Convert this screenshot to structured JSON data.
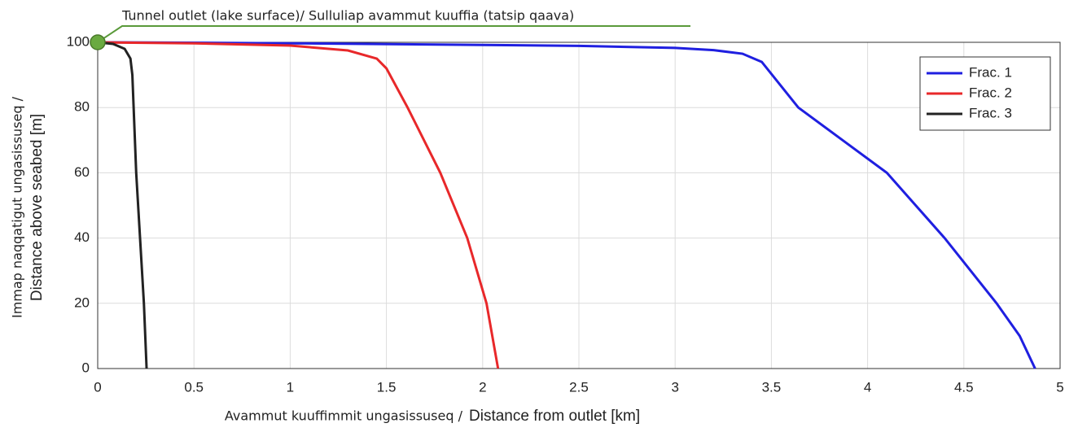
{
  "chart_data": {
    "type": "line",
    "annotation": {
      "text": "Tunnel outlet (lake surface)/ Sulluliap avammut kuuffia (tatsip qaava)",
      "x": 0,
      "y": 100,
      "color": "#5a9a3a"
    },
    "xlabel": [
      "Avammut kuuffimmit ungasissuseq /",
      "Distance from outlet [km]"
    ],
    "ylabel": [
      "Immap naqqatigut ungasissuseq /",
      "Distance above seabed [m]"
    ],
    "xlim": [
      0,
      5
    ],
    "xticks": [
      0,
      0.5,
      1,
      1.5,
      2,
      2.5,
      3,
      3.5,
      4,
      4.5,
      5
    ],
    "ylim": [
      0,
      100
    ],
    "yticks": [
      0,
      20,
      40,
      60,
      80,
      100
    ],
    "grid": true,
    "legend": "upper right",
    "series": [
      {
        "name": "Frac. 1",
        "color": "#1f1fe0",
        "x": [
          0,
          1,
          2,
          2.5,
          3,
          3.2,
          3.35,
          3.45,
          3.64,
          3.87,
          4.1,
          4.4,
          4.67,
          4.79,
          4.87
        ],
        "values": [
          100,
          99.7,
          99.2,
          98.9,
          98.3,
          97.6,
          96.5,
          94,
          80,
          70,
          60,
          40,
          20,
          10,
          0
        ]
      },
      {
        "name": "Frac. 2",
        "color": "#e8282a",
        "x": [
          0,
          0.5,
          1,
          1.3,
          1.45,
          1.5,
          1.61,
          1.78,
          1.92,
          2.02,
          2.08
        ],
        "values": [
          100,
          99.7,
          99,
          97.5,
          95,
          92,
          80,
          60,
          40,
          20,
          0
        ]
      },
      {
        "name": "Frac. 3",
        "color": "#222222",
        "x": [
          0,
          0.08,
          0.14,
          0.17,
          0.18,
          0.2,
          0.22,
          0.24,
          0.254
        ],
        "values": [
          100,
          99.5,
          98,
          95,
          90,
          60,
          40,
          20,
          0
        ]
      }
    ]
  }
}
